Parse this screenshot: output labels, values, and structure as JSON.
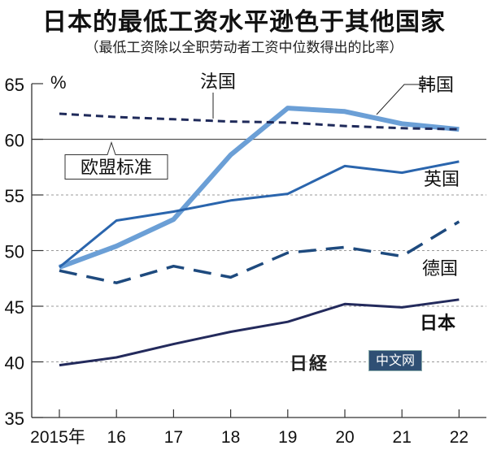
{
  "chart_data": {
    "type": "line",
    "title": "日本的最低工资水平逊色于其他国家",
    "subtitle": "（最低工资除以全职劳动者工资中位数得出的比率）",
    "ylabel": "%",
    "xlabel": "",
    "ylim": [
      35,
      65
    ],
    "yticks": [
      35,
      40,
      45,
      50,
      55,
      60,
      65
    ],
    "x": [
      2015,
      2016,
      2017,
      2018,
      2019,
      2020,
      2021,
      2022
    ],
    "xtick_labels": [
      "2015年",
      "16",
      "17",
      "18",
      "19",
      "20",
      "21",
      "22"
    ],
    "grid": "horizontal dotted",
    "reference_line": {
      "value": 60,
      "label": "欧盟标准"
    },
    "series": [
      {
        "name": "法国",
        "style": "short-dash",
        "color": "#1f2a5a",
        "values": [
          62.3,
          62.0,
          61.8,
          61.6,
          61.5,
          61.2,
          61.0,
          60.9
        ]
      },
      {
        "name": "韩国",
        "style": "solid-thick",
        "color": "#6b9fd6",
        "values": [
          48.5,
          50.4,
          52.8,
          58.6,
          62.8,
          62.5,
          61.4,
          60.9
        ]
      },
      {
        "name": "英国",
        "style": "solid",
        "color": "#2a65ad",
        "values": [
          48.5,
          52.7,
          53.5,
          54.5,
          55.1,
          57.6,
          57.0,
          58.0
        ]
      },
      {
        "name": "德国",
        "style": "long-dash",
        "color": "#1e4a7e",
        "values": [
          48.2,
          47.1,
          48.6,
          47.6,
          49.8,
          50.3,
          49.5,
          52.6
        ]
      },
      {
        "name": "日本",
        "style": "solid",
        "color": "#232a5c",
        "values": [
          39.7,
          40.4,
          41.6,
          42.7,
          43.6,
          45.2,
          44.9,
          45.6
        ]
      }
    ]
  },
  "watermark": {
    "logo": "日経",
    "text": "中文网"
  }
}
